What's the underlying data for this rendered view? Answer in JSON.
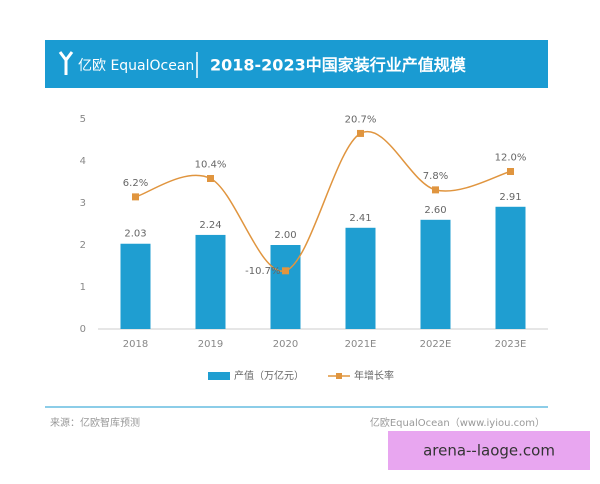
{
  "header": {
    "logo": "亿欧 EqualOcean"
  },
  "chart_data": {
    "type": "bar",
    "title": "2018-2023中国家装行业产值规模",
    "categories": [
      "2018",
      "2019",
      "2020",
      "2021E",
      "2022E",
      "2023E"
    ],
    "series": [
      {
        "name": "产值（万亿元）",
        "type": "bar",
        "color": "#1f9ed1",
        "values": [
          2.03,
          2.24,
          2.0,
          2.41,
          2.6,
          2.91
        ],
        "value_labels": [
          "2.03",
          "2.24",
          "2.00",
          "2.41",
          "2.60",
          "2.91"
        ]
      },
      {
        "name": "年增长率",
        "type": "line",
        "axis": "y2",
        "color": "#e0953f",
        "values": [
          6.2,
          10.4,
          -10.7,
          20.7,
          7.8,
          12.0
        ],
        "value_labels": [
          "6.2%",
          "10.4%",
          "-10.7%",
          "20.7%",
          "7.8%",
          "12.0%"
        ]
      }
    ],
    "ylim": [
      0,
      5
    ],
    "yticks": [
      0,
      1,
      2,
      3,
      4,
      5
    ],
    "y2lim": [
      -24,
      24
    ],
    "grid": false,
    "legend": "bottom"
  },
  "footer": {
    "source": "来源：亿欧智库预测",
    "brand": "亿欧EqualOcean（www.iyiou.com）"
  },
  "watermark": "arena--laoge.com"
}
